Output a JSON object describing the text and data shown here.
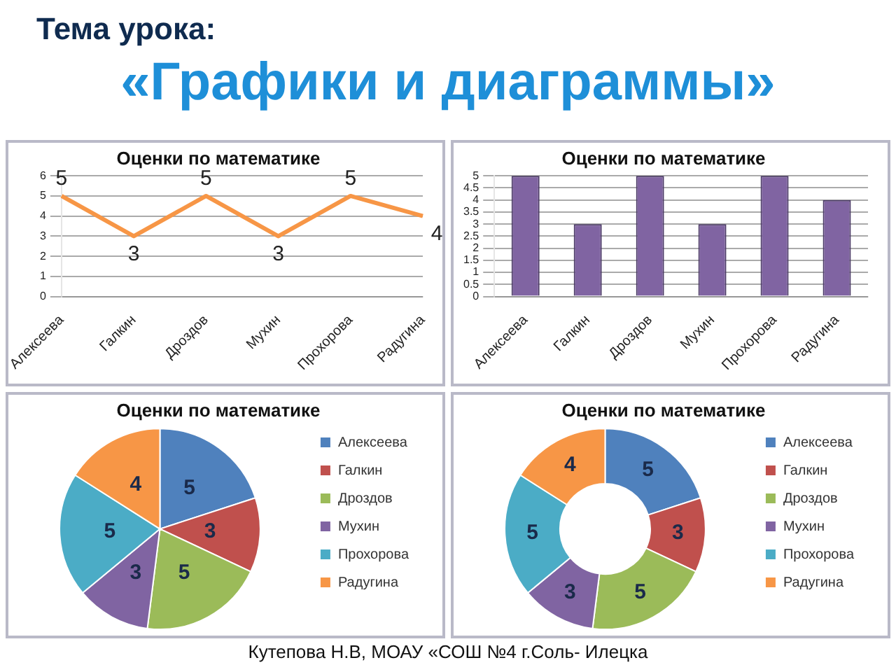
{
  "chart_data": [
    {
      "type": "line",
      "title": "Оценки по математике",
      "annotations": [
        "Тема урока:",
        "«Графики и диаграммы»"
      ],
      "categories": [
        "Алексеева",
        "Галкин",
        "Дроздов",
        "Мухин",
        "Прохорова",
        "Радугина"
      ],
      "values": [
        5,
        3,
        5,
        3,
        5,
        4
      ],
      "color": "#f79646",
      "ylim": [
        0,
        6
      ],
      "yticks": [
        0,
        1,
        2,
        3,
        4,
        5,
        6
      ],
      "grid": "y",
      "marker": "none",
      "data_labels": true
    },
    {
      "type": "bar",
      "title": "Оценки по математике",
      "categories": [
        "Алексеева",
        "Галкин",
        "Дроздов",
        "Мухин",
        "Прохорова",
        "Радугина"
      ],
      "values": [
        5,
        3,
        5,
        3,
        5,
        4
      ],
      "color": "#8064a2",
      "ylim": [
        0,
        5
      ],
      "yticks": [
        0,
        0.5,
        1,
        1.5,
        2,
        2.5,
        3,
        3.5,
        4,
        4.5,
        5
      ],
      "grid": "y"
    },
    {
      "type": "pie",
      "title": "Оценки по математике",
      "categories": [
        "Алексеева",
        "Галкин",
        "Дроздов",
        "Мухин",
        "Прохорова",
        "Радугина"
      ],
      "values": [
        5,
        3,
        5,
        3,
        5,
        4
      ],
      "colors": [
        "#4f81bd",
        "#c0504d",
        "#9bbb59",
        "#8064a2",
        "#4bacc6",
        "#f79646"
      ],
      "legend": "right",
      "data_labels": true
    },
    {
      "type": "donut",
      "title": "Оценки по математике",
      "annotations": [
        "Кутепова Н.В,  МОАУ «СОШ №4 г.Соль- Илецка"
      ],
      "categories": [
        "Алексеева",
        "Галкин",
        "Дроздов",
        "Мухин",
        "Прохорова",
        "Радугина"
      ],
      "values": [
        5,
        3,
        5,
        3,
        5,
        4
      ],
      "colors": [
        "#4f81bd",
        "#c0504d",
        "#9bbb59",
        "#8064a2",
        "#4bacc6",
        "#f79646"
      ],
      "legend": "right",
      "data_labels": true
    }
  ]
}
